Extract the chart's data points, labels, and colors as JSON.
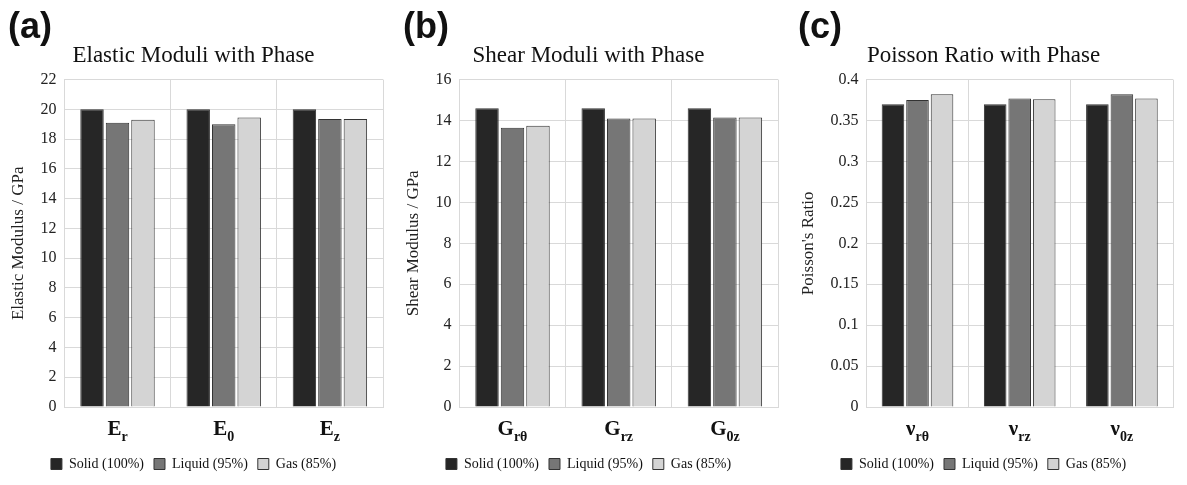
{
  "chart_data": [
    {
      "type": "bar",
      "title": "Elastic Moduli with Phase",
      "ylabel": "Elastic Modulus / GPa",
      "annotations": [
        "(a)"
      ],
      "categories": [
        "E$_{r}$",
        "E$_{0}$",
        "E$_{z}$"
      ],
      "series": [
        {
          "name": "Solid (100%)",
          "color": "#262626",
          "values": [
            20,
            20,
            20
          ]
        },
        {
          "name": "Liquid (95%)",
          "color": "#767676",
          "values": [
            19.1,
            19.0,
            19.35
          ]
        },
        {
          "name": "Gas (85%)",
          "color": "#d4d4d4",
          "values": [
            19.3,
            19.45,
            19.35
          ]
        }
      ],
      "ylim": [
        0,
        22
      ],
      "yticks": [
        0,
        2,
        4,
        6,
        8,
        10,
        12,
        14,
        16,
        18,
        20,
        22
      ],
      "grid": true,
      "legend": "bottom"
    },
    {
      "type": "bar",
      "title": "Shear Moduli with Phase",
      "ylabel": "Shear Modulus / GPa",
      "annotations": [
        "(b)"
      ],
      "categories": [
        "G$_{rθ}$",
        "G$_{rz}$",
        "G$_{0z}$"
      ],
      "series": [
        {
          "name": "Solid (100%)",
          "color": "#262626",
          "values": [
            14.6,
            14.6,
            14.6
          ]
        },
        {
          "name": "Liquid (95%)",
          "color": "#767676",
          "values": [
            13.65,
            14.1,
            14.15
          ]
        },
        {
          "name": "Gas (85%)",
          "color": "#d4d4d4",
          "values": [
            13.75,
            14.1,
            14.15
          ]
        }
      ],
      "ylim": [
        0,
        16
      ],
      "yticks": [
        0,
        2,
        4,
        6,
        8,
        10,
        12,
        14,
        16
      ],
      "grid": true,
      "legend": "bottom"
    },
    {
      "type": "bar",
      "title": "Poisson Ratio with Phase",
      "ylabel": "Poisson's Ratio",
      "annotations": [
        "(c)"
      ],
      "categories": [
        "ν$_{rθ}$",
        "ν$_{rz}$",
        "ν$_{0z}$"
      ],
      "series": [
        {
          "name": "Solid (100%)",
          "color": "#262626",
          "values": [
            0.37,
            0.37,
            0.37
          ]
        },
        {
          "name": "Liquid (95%)",
          "color": "#767676",
          "values": [
            0.375,
            0.377,
            0.382
          ]
        },
        {
          "name": "Gas (85%)",
          "color": "#d4d4d4",
          "values": [
            0.382,
            0.376,
            0.377
          ]
        }
      ],
      "ylim": [
        0,
        0.4
      ],
      "yticks": [
        0,
        0.05,
        0.1,
        0.15,
        0.2,
        0.25,
        0.3,
        0.35,
        0.4
      ],
      "grid": true,
      "legend": "bottom"
    }
  ]
}
